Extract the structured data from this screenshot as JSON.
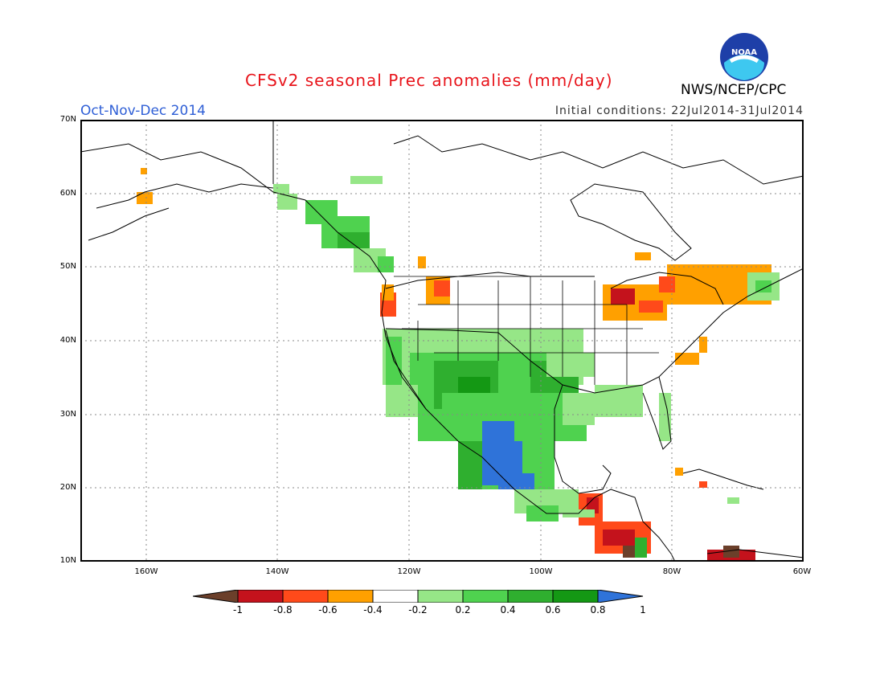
{
  "header": {
    "title": "CFSv2 seasonal Prec anomalies (mm/day)",
    "season": "Oct-Nov-Dec 2014",
    "initial_conditions": "Initial conditions: 22Jul2014-31Jul2014",
    "agency": "NWS/NCEP/CPC",
    "logo_text": "NOAA"
  },
  "map": {
    "lat_labels": [
      "70N",
      "60N",
      "50N",
      "40N",
      "30N",
      "20N",
      "10N"
    ],
    "lon_labels": [
      "160W",
      "140W",
      "120W",
      "100W",
      "80W",
      "60W"
    ],
    "lon_range": [
      -170,
      -60
    ],
    "lat_range": [
      10,
      70
    ]
  },
  "colorbar": {
    "labels": [
      "-1",
      "-0.8",
      "-0.6",
      "-0.4",
      "-0.2",
      "0.2",
      "0.4",
      "0.6",
      "0.8",
      "1"
    ],
    "colors": [
      "#6b3f2a",
      "#c4121c",
      "#ff4a1a",
      "#ffa000",
      "#ffffff",
      "#96e687",
      "#4fd24f",
      "#2faf2f",
      "#149814",
      "#2f73d9"
    ]
  },
  "colors": {
    "title": "#e8141b",
    "season": "#2f5fd6",
    "coast": "#000000"
  }
}
